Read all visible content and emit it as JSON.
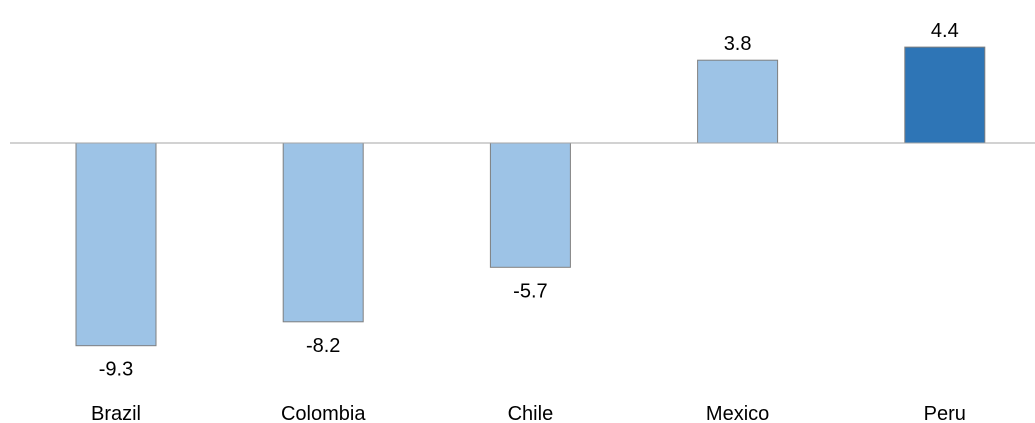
{
  "chart_data": {
    "type": "bar",
    "title": "",
    "xlabel": "",
    "ylabel": "",
    "categories": [
      "Brazil",
      "Colombia",
      "Chile",
      "Mexico",
      "Peru"
    ],
    "values": [
      -9.3,
      -8.2,
      -5.7,
      3.8,
      4.4
    ],
    "value_labels": [
      "-9.3",
      "-8.2",
      "-5.7",
      "3.8",
      "4.4"
    ],
    "ylim": [
      -9.3,
      4.4
    ],
    "grid": false,
    "legend": "none",
    "colors": {
      "default_bar": "#9DC3E6",
      "highlight_bar": "#2E75B6",
      "bar_border": "#7F7F7F",
      "baseline": "#A6A6A6"
    },
    "highlight_category": "Peru"
  }
}
